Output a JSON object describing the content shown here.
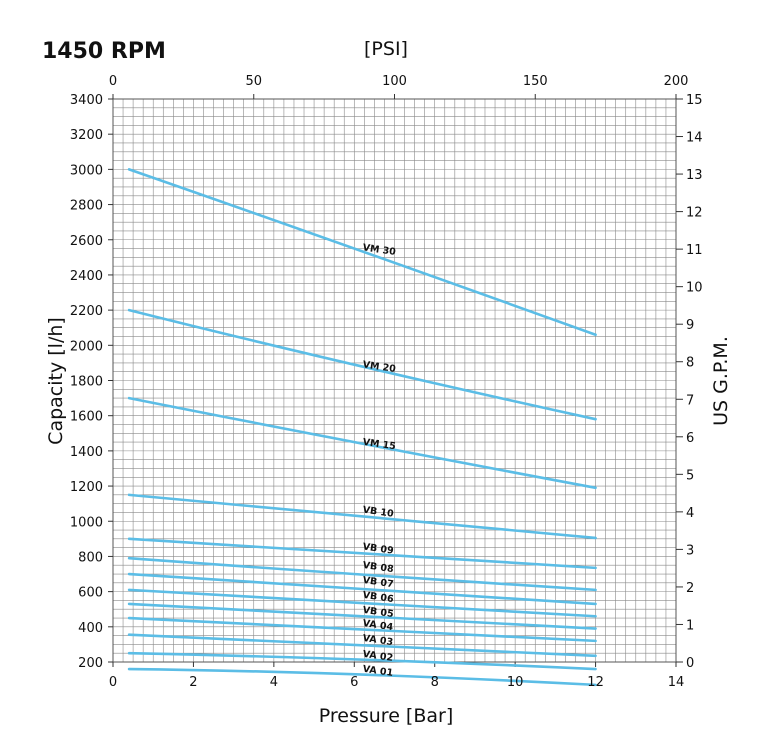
{
  "title": "1450 RPM",
  "chart_data": {
    "type": "line",
    "title": "1450 RPM",
    "xlabel": "Pressure [Bar]",
    "ylabel": "Capacity [l/h]",
    "x2label": "[PSI]",
    "y2label": "US G.P.M.",
    "xlim": [
      0,
      14
    ],
    "ylim": [
      200,
      3400
    ],
    "x2lim": [
      0,
      200
    ],
    "y2lim": [
      0,
      15
    ],
    "xticks": [
      "0",
      "2",
      "4",
      "6",
      "8",
      "10",
      "12",
      "14"
    ],
    "yticks": [
      "200",
      "400",
      "600",
      "800",
      "1000",
      "1200",
      "1400",
      "1600",
      "1800",
      "2000",
      "2200",
      "2400",
      "2600",
      "2800",
      "3000",
      "3200",
      "3400"
    ],
    "x2ticks": [
      "0",
      "50",
      "100",
      "150",
      "200"
    ],
    "y2ticks": [
      "0",
      "1",
      "2",
      "3",
      "4",
      "5",
      "6",
      "7",
      "8",
      "9",
      "10",
      "11",
      "12",
      "13",
      "14",
      "15"
    ],
    "grid": true,
    "line_color": "#5bbde6",
    "series": [
      {
        "name": "VM 30",
        "x": [
          0.4,
          6,
          12
        ],
        "y": [
          3000,
          2550,
          2060
        ]
      },
      {
        "name": "VM 20",
        "x": [
          0.4,
          6,
          12
        ],
        "y": [
          2200,
          1890,
          1580
        ]
      },
      {
        "name": "VM 15",
        "x": [
          0.4,
          6,
          12
        ],
        "y": [
          1700,
          1450,
          1190
        ]
      },
      {
        "name": "VB 10",
        "x": [
          0.4,
          6,
          12
        ],
        "y": [
          1150,
          1030,
          905
        ]
      },
      {
        "name": "VB 09",
        "x": [
          0.4,
          6,
          12
        ],
        "y": [
          900,
          820,
          735
        ]
      },
      {
        "name": "VB 08",
        "x": [
          0.4,
          6,
          12
        ],
        "y": [
          790,
          700,
          610
        ]
      },
      {
        "name": "VB 07",
        "x": [
          0.4,
          6,
          12
        ],
        "y": [
          700,
          620,
          530
        ]
      },
      {
        "name": "VB 06",
        "x": [
          0.4,
          6,
          12
        ],
        "y": [
          610,
          540,
          460
        ]
      },
      {
        "name": "VB 05",
        "x": [
          0.4,
          6,
          12
        ],
        "y": [
          530,
          460,
          390
        ]
      },
      {
        "name": "VA 04",
        "x": [
          0.4,
          6,
          12
        ],
        "y": [
          450,
          390,
          320
        ]
      },
      {
        "name": "VA 03",
        "x": [
          0.4,
          6,
          12
        ],
        "y": [
          355,
          300,
          235
        ]
      },
      {
        "name": "VA 02",
        "x": [
          0.4,
          6,
          12
        ],
        "y": [
          250,
          215,
          160
        ]
      },
      {
        "name": "VA 01",
        "x": [
          0.4,
          6,
          12
        ],
        "y": [
          160,
          130,
          70
        ]
      }
    ],
    "series_labels": [
      {
        "name": "VM 30",
        "x": 6.2,
        "y": 2540
      },
      {
        "name": "VM 20",
        "x": 6.2,
        "y": 1875
      },
      {
        "name": "VM 15",
        "x": 6.2,
        "y": 1435
      },
      {
        "name": "VB 10",
        "x": 6.2,
        "y": 1050
      },
      {
        "name": "VB 09",
        "x": 6.2,
        "y": 840
      },
      {
        "name": "VB 08",
        "x": 6.2,
        "y": 735
      },
      {
        "name": "VB 07",
        "x": 6.2,
        "y": 650
      },
      {
        "name": "VB 06",
        "x": 6.2,
        "y": 565
      },
      {
        "name": "VB 05",
        "x": 6.2,
        "y": 480
      },
      {
        "name": "VA 04",
        "x": 6.2,
        "y": 405
      },
      {
        "name": "VA 03",
        "x": 6.2,
        "y": 320
      },
      {
        "name": "VA 02",
        "x": 6.2,
        "y": 230
      },
      {
        "name": "VA 01",
        "x": 6.2,
        "y": 145
      }
    ]
  }
}
